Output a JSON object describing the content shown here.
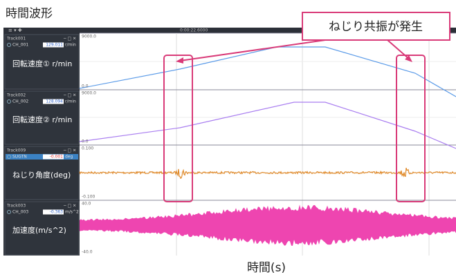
{
  "title": "時間波形",
  "callout": "ねじり共振が発生",
  "x_axis_label": "時間(s)",
  "time_cursor": "0:00:22.6000",
  "tracks": [
    {
      "track": "Track001",
      "channel": "CH_001",
      "value": "129.011",
      "unit": "r/min",
      "label": "回転速度① r/min",
      "top": "9000.0",
      "bottom": "0.0"
    },
    {
      "track": "Track002",
      "channel": "CH_002",
      "value": "128.094",
      "unit": "r/min",
      "label": "回転速度② r/min",
      "top": "9000.0",
      "bottom": "0.0"
    },
    {
      "track": "Track009",
      "channel": "SUGTN",
      "value": "-0.001",
      "unit": "deg",
      "label": "ねじり角度(deg)",
      "top": "0.100",
      "bottom": "-0.100"
    },
    {
      "track": "Track003",
      "channel": "CH_003",
      "value": "-0.363",
      "unit": "m/s^2",
      "label": "加速度(m/s^2)",
      "top": "40.0",
      "bottom": "-40.0"
    }
  ]
}
